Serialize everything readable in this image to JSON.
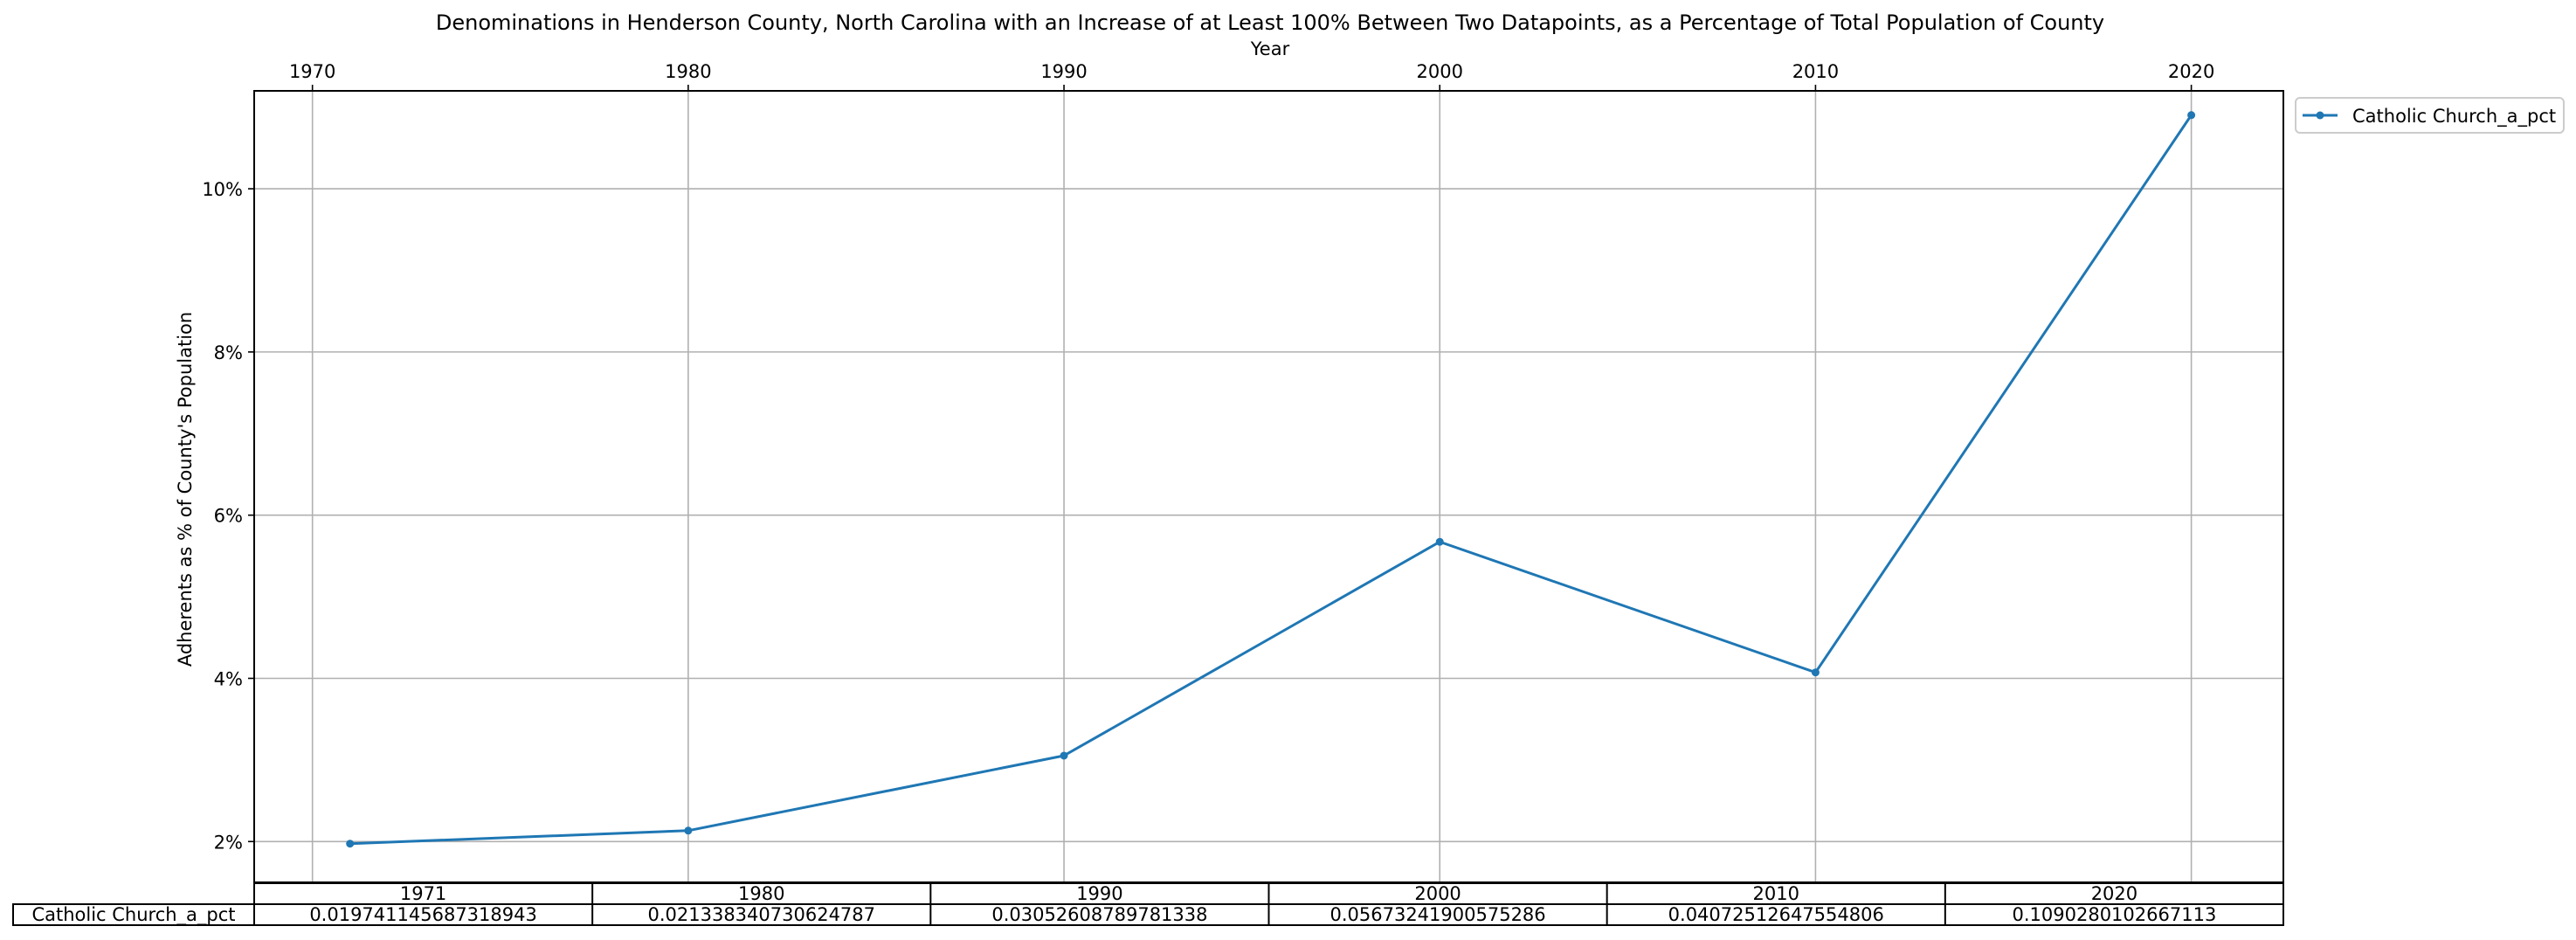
{
  "chart_data": {
    "type": "line",
    "title": "Denominations in Henderson County, North Carolina with an Increase of at Least 100% Between Two Datapoints, as a Percentage of Total Population of County",
    "xlabel": "Year",
    "ylabel": "Adherents as % of County's Population",
    "x_ticks": [
      1970,
      1980,
      1990,
      2000,
      2010,
      2020
    ],
    "x_tick_labels": [
      "1970",
      "1980",
      "1990",
      "2000",
      "2010",
      "2020"
    ],
    "y_ticks": [
      2,
      4,
      6,
      8,
      10
    ],
    "y_tick_labels": [
      "2%",
      "4%",
      "6%",
      "8%",
      "10%"
    ],
    "xlim": [
      1968.45,
      2022.45
    ],
    "ylim": [
      1.5,
      11.2
    ],
    "grid": true,
    "x_axis_position": "top",
    "legend_position": "outside-top-right",
    "series": [
      {
        "name": "Catholic Church_a_pct",
        "color": "#1f77b4",
        "marker": "circle",
        "x": [
          1971,
          1980,
          1990,
          2000,
          2010,
          2020
        ],
        "y": [
          1.9741,
          2.1338,
          3.0526,
          5.6732,
          4.0725,
          10.9028
        ]
      }
    ],
    "table": {
      "columns": [
        "1971",
        "1980",
        "1990",
        "2000",
        "2010",
        "2020"
      ],
      "rows": [
        {
          "label": "Catholic Church_a_pct",
          "cells": [
            "0.019741145687318943",
            "0.021338340730624787",
            "0.03052608789781338",
            "0.05673241900575286",
            "0.04072512647554806",
            "0.1090280102667113"
          ]
        }
      ]
    }
  }
}
